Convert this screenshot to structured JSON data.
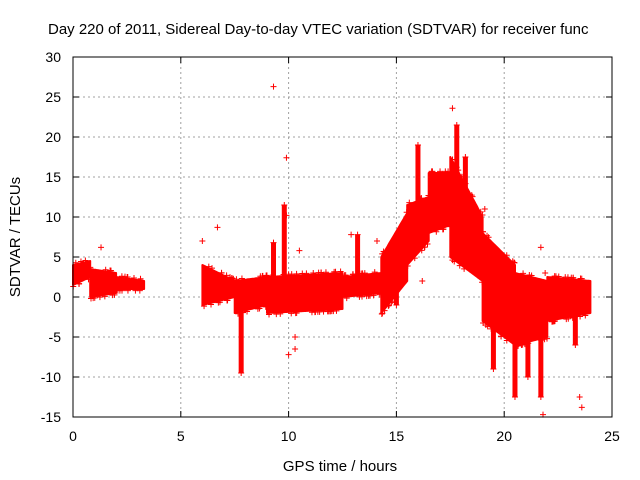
{
  "chart_data": {
    "type": "scatter",
    "title": "Day 220 of 2011, Sidereal Day-to-day VTEC variation (SDTVAR) for receiver func",
    "xlabel": "GPS time / hours",
    "ylabel": "SDTVAR / TECUs",
    "xlim": [
      0,
      25
    ],
    "ylim": [
      -15,
      30
    ],
    "xticks": [
      0,
      5,
      10,
      15,
      20,
      25
    ],
    "yticks": [
      -15,
      -10,
      -5,
      0,
      5,
      10,
      15,
      20,
      25,
      30
    ],
    "grid": true,
    "marker": "+",
    "series_color": "#ff0000",
    "series": [
      {
        "name": "SDTVAR",
        "bands": [
          {
            "x": [
              0.0,
              0.8
            ],
            "ymin": [
              1.5,
              2.5
            ],
            "ymax": [
              4.0,
              4.5
            ]
          },
          {
            "x": [
              0.8,
              2.0
            ],
            "ymin": [
              0.0,
              0.5
            ],
            "ymax": [
              3.5,
              3.0
            ]
          },
          {
            "x": [
              2.0,
              3.3
            ],
            "ymin": [
              1.0,
              1.0
            ],
            "ymax": [
              2.5,
              2.0
            ]
          },
          {
            "x": [
              6.0,
              7.5
            ],
            "ymin": [
              -1.0,
              0.0
            ],
            "ymax": [
              4.0,
              2.0
            ]
          },
          {
            "x": [
              7.5,
              9.0
            ],
            "ymin": [
              -2.0,
              -1.0
            ],
            "ymax": [
              2.0,
              2.5
            ]
          },
          {
            "x": [
              9.0,
              12.5
            ],
            "ymin": [
              -2.0,
              -1.5
            ],
            "ymax": [
              2.5,
              3.0
            ]
          },
          {
            "x": [
              12.5,
              14.3
            ],
            "ymin": [
              0.0,
              0.5
            ],
            "ymax": [
              2.5,
              3.0
            ]
          },
          {
            "x": [
              14.3,
              15.5
            ],
            "ymin": [
              -2.0,
              2.0
            ],
            "ymax": [
              5.0,
              10.5
            ]
          },
          {
            "x": [
              15.5,
              16.5
            ],
            "ymin": [
              4.0,
              7.0
            ],
            "ymax": [
              11.5,
              12.5
            ]
          },
          {
            "x": [
              16.5,
              17.5
            ],
            "ymin": [
              8.0,
              9.0
            ],
            "ymax": [
              15.5,
              15.5
            ]
          },
          {
            "x": [
              17.5,
              19.0
            ],
            "ymin": [
              5.0,
              2.0
            ],
            "ymax": [
              17.5,
              10.0
            ]
          },
          {
            "x": [
              19.0,
              20.5
            ],
            "ymin": [
              -3.0,
              -6.0
            ],
            "ymax": [
              8.0,
              4.0
            ]
          },
          {
            "x": [
              20.5,
              22.0
            ],
            "ymin": [
              -6.0,
              -5.0
            ],
            "ymax": [
              3.0,
              2.0
            ]
          },
          {
            "x": [
              22.0,
              24.0
            ],
            "ymin": [
              -3.0,
              -2.0
            ],
            "ymax": [
              2.5,
              2.0
            ]
          }
        ],
        "spikes": [
          {
            "x": 7.8,
            "y0": 0,
            "y1": -9.5
          },
          {
            "x": 9.3,
            "y0": 1,
            "y1": 6.8
          },
          {
            "x": 9.8,
            "y0": 1,
            "y1": 11.5
          },
          {
            "x": 13.2,
            "y0": 2,
            "y1": 7.8
          },
          {
            "x": 15.0,
            "y0": 5,
            "y1": -1.0
          },
          {
            "x": 16.0,
            "y0": 11,
            "y1": 19.0
          },
          {
            "x": 17.8,
            "y0": 10,
            "y1": 21.5
          },
          {
            "x": 18.2,
            "y0": 10,
            "y1": 17.5
          },
          {
            "x": 19.5,
            "y0": 2,
            "y1": -9.0
          },
          {
            "x": 20.5,
            "y0": 0,
            "y1": -12.5
          },
          {
            "x": 21.1,
            "y0": -2,
            "y1": -10.0
          },
          {
            "x": 21.7,
            "y0": -2,
            "y1": -12.5
          },
          {
            "x": 23.3,
            "y0": 0,
            "y1": -6.0
          }
        ],
        "outliers": [
          [
            1.3,
            6.2
          ],
          [
            6.0,
            7.0
          ],
          [
            6.7,
            8.7
          ],
          [
            9.3,
            26.3
          ],
          [
            9.9,
            17.4
          ],
          [
            9.9,
            10.2
          ],
          [
            10.0,
            -7.2
          ],
          [
            10.3,
            -6.5
          ],
          [
            10.3,
            -5.0
          ],
          [
            10.5,
            5.8
          ],
          [
            12.9,
            7.8
          ],
          [
            14.1,
            7.0
          ],
          [
            16.2,
            2.0
          ],
          [
            17.6,
            23.6
          ],
          [
            19.1,
            11.0
          ],
          [
            21.7,
            6.2
          ],
          [
            21.8,
            -14.7
          ],
          [
            23.5,
            -12.5
          ],
          [
            23.6,
            -13.8
          ],
          [
            21.9,
            3.0
          ]
        ]
      }
    ]
  }
}
